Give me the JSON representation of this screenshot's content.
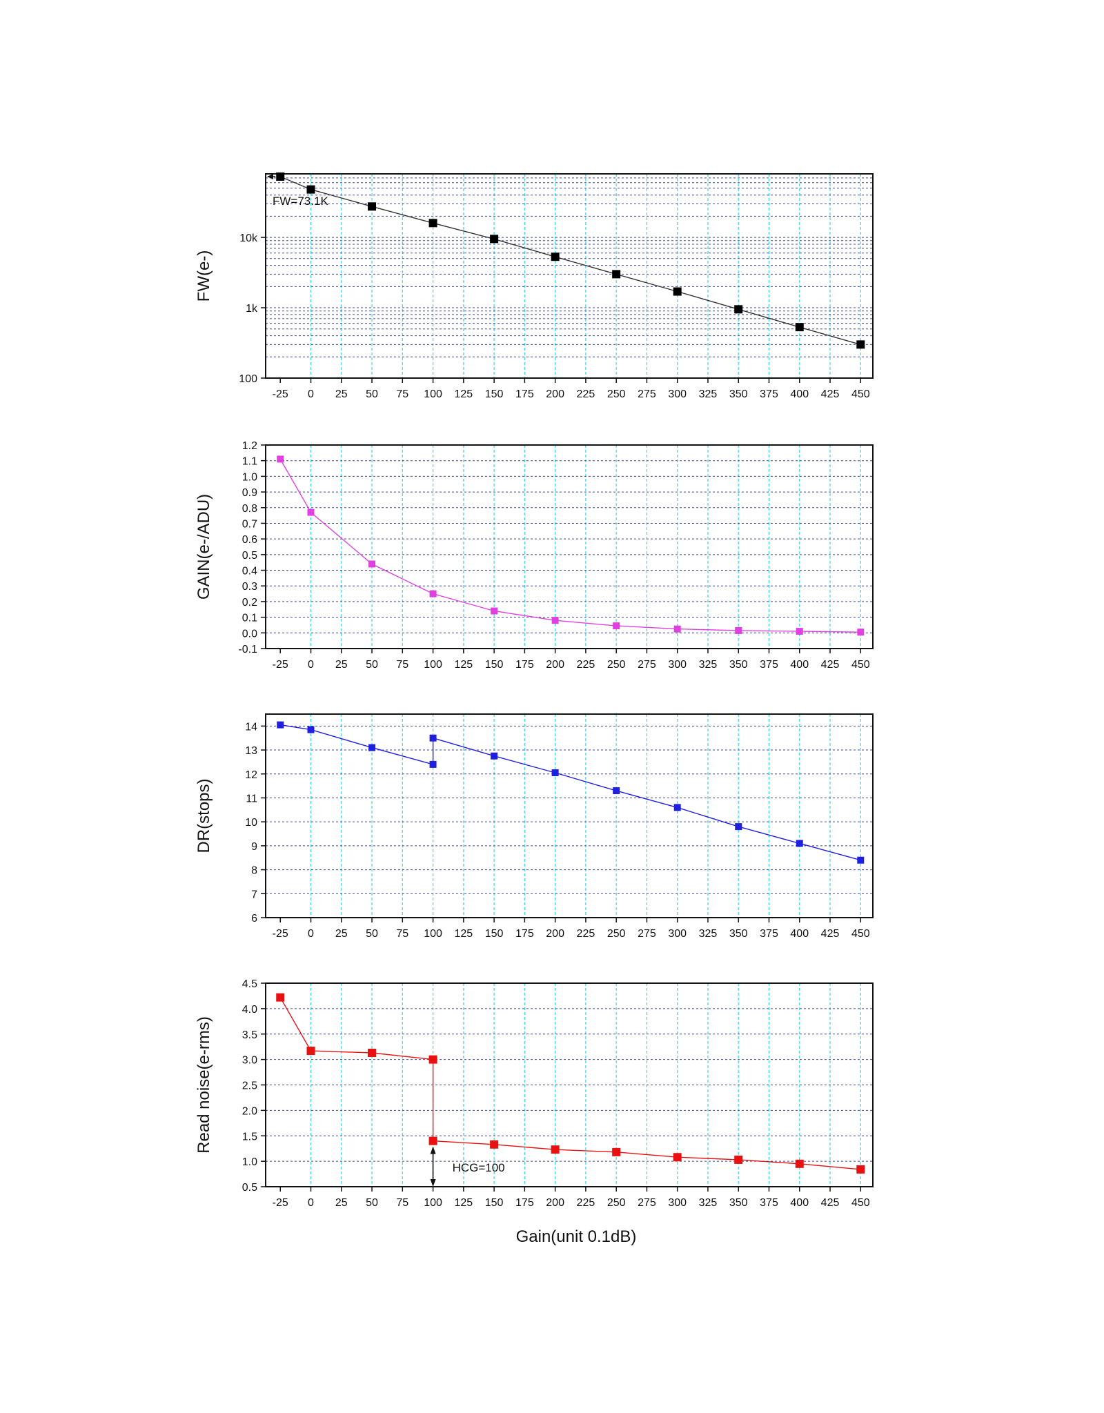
{
  "figure": {
    "shared_xlabel": "Gain(unit 0.1dB)"
  },
  "chart_data": [
    {
      "type": "line",
      "ylabel": "FW(e-)",
      "yscale": "log",
      "ylim": [
        100,
        80000
      ],
      "xlim": [
        -37,
        460
      ],
      "xticks": [
        -25,
        0,
        25,
        50,
        75,
        100,
        125,
        150,
        175,
        200,
        225,
        250,
        275,
        300,
        325,
        350,
        375,
        400,
        425,
        450
      ],
      "yticks": [
        100,
        1000,
        10000
      ],
      "ytick_labels": [
        "100",
        "1k",
        "10k"
      ],
      "color": "#000000",
      "series": [
        {
          "name": "FW",
          "x": [
            -25,
            0,
            50,
            100,
            150,
            200,
            250,
            300,
            350,
            400,
            450
          ],
          "y": [
            73100,
            48000,
            27500,
            16000,
            9500,
            5300,
            3000,
            1700,
            950,
            530,
            300
          ]
        }
      ],
      "annotations": [
        {
          "text": "FW=73.1K",
          "x": -25,
          "y": 73100
        }
      ]
    },
    {
      "type": "line",
      "ylabel": "GAIN(e-/ADU)",
      "ylim": [
        -0.1,
        1.2
      ],
      "xlim": [
        -37,
        460
      ],
      "xticks": [
        -25,
        0,
        25,
        50,
        75,
        100,
        125,
        150,
        175,
        200,
        225,
        250,
        275,
        300,
        325,
        350,
        375,
        400,
        425,
        450
      ],
      "yticks": [
        -0.1,
        0.0,
        0.1,
        0.2,
        0.3,
        0.4,
        0.5,
        0.6,
        0.7,
        0.8,
        0.9,
        1.0,
        1.1,
        1.2
      ],
      "ytick_labels": [
        "-0.1",
        "0.0",
        "0.1",
        "0.2",
        "0.3",
        "0.4",
        "0.5",
        "0.6",
        "0.7",
        "0.8",
        "0.9",
        "1.0",
        "1.1",
        "1.2"
      ],
      "color": "#e040e0",
      "series": [
        {
          "name": "GAIN",
          "x": [
            -25,
            0,
            50,
            100,
            150,
            200,
            250,
            300,
            350,
            400,
            450
          ],
          "y": [
            1.11,
            0.77,
            0.44,
            0.25,
            0.14,
            0.08,
            0.045,
            0.025,
            0.015,
            0.01,
            0.005
          ]
        }
      ]
    },
    {
      "type": "line",
      "ylabel": "DR(stops)",
      "ylim": [
        6,
        14.5
      ],
      "xlim": [
        -37,
        460
      ],
      "xticks": [
        -25,
        0,
        25,
        50,
        75,
        100,
        125,
        150,
        175,
        200,
        225,
        250,
        275,
        300,
        325,
        350,
        375,
        400,
        425,
        450
      ],
      "yticks": [
        6,
        7,
        8,
        9,
        10,
        11,
        12,
        13,
        14
      ],
      "ytick_labels": [
        "6",
        "7",
        "8",
        "9",
        "10",
        "11",
        "12",
        "13",
        "14"
      ],
      "color": "#1f1fe0",
      "series": [
        {
          "name": "DR",
          "x": [
            -25,
            0,
            50,
            100,
            100,
            150,
            200,
            250,
            300,
            350,
            400,
            450
          ],
          "y": [
            14.05,
            13.85,
            13.1,
            12.4,
            13.5,
            12.75,
            12.05,
            11.3,
            10.6,
            9.8,
            9.1,
            8.4
          ]
        }
      ]
    },
    {
      "type": "line",
      "ylabel": "Read noise(e-rms)",
      "ylim": [
        0.5,
        4.5
      ],
      "xlim": [
        -37,
        460
      ],
      "xticks": [
        -25,
        0,
        25,
        50,
        75,
        100,
        125,
        150,
        175,
        200,
        225,
        250,
        275,
        300,
        325,
        350,
        375,
        400,
        425,
        450
      ],
      "yticks": [
        0.5,
        1.0,
        1.5,
        2.0,
        2.5,
        3.0,
        3.5,
        4.0,
        4.5
      ],
      "ytick_labels": [
        "0.5",
        "1.0",
        "1.5",
        "2.0",
        "2.5",
        "3.0",
        "3.5",
        "4.0",
        "4.5"
      ],
      "color": "#e81010",
      "series": [
        {
          "name": "Read noise",
          "x": [
            -25,
            0,
            50,
            100,
            100,
            150,
            200,
            250,
            300,
            350,
            400,
            450
          ],
          "y": [
            4.22,
            3.17,
            3.13,
            3.0,
            1.4,
            1.33,
            1.23,
            1.18,
            1.08,
            1.03,
            0.95,
            0.84
          ]
        }
      ],
      "annotations": [
        {
          "text": "HCG=100",
          "x": 100,
          "y": 1.0
        }
      ]
    }
  ]
}
